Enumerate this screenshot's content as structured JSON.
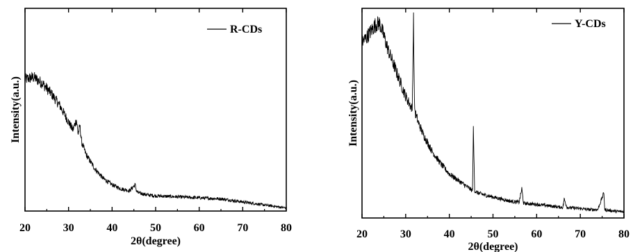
{
  "chart_data": [
    {
      "type": "line",
      "xlabel": "2θ(degree)",
      "ylabel": "Intensity(a.u.)",
      "xlim": [
        20,
        80
      ],
      "xticks": [
        "20",
        "30",
        "40",
        "50",
        "60",
        "70",
        "80"
      ],
      "yticks_labeled": false,
      "ylim": [
        0,
        100
      ],
      "legend": {
        "placement": "top-right",
        "entries": [
          "R-CDs"
        ]
      },
      "series": [
        {
          "name": "R-CDs",
          "color": "#000000",
          "x": [
            20,
            22,
            24,
            26,
            28,
            30,
            31,
            31.8,
            32.2,
            32.6,
            33,
            34,
            36,
            38,
            40,
            42,
            44,
            45.3,
            45.6,
            46,
            48,
            50,
            55,
            60,
            65,
            70,
            75,
            80
          ],
          "y": [
            65,
            66,
            63,
            58,
            52,
            44,
            40,
            45,
            38,
            42,
            34,
            28,
            21,
            16,
            13,
            11,
            10,
            13,
            10,
            9,
            8,
            7.5,
            7,
            6.5,
            6,
            4.5,
            3,
            1.5
          ]
        }
      ]
    },
    {
      "type": "line",
      "xlabel": "2θ(degree)",
      "ylabel": "Intensity(a.u.)",
      "xlim": [
        20,
        80
      ],
      "xticks": [
        "20",
        "30",
        "40",
        "50",
        "60",
        "70",
        "80"
      ],
      "yticks_labeled": false,
      "ylim": [
        0,
        100
      ],
      "legend": {
        "placement": "top-right",
        "entries": [
          "Y-CDs"
        ]
      },
      "series": [
        {
          "name": "Y-CDs",
          "color": "#000000",
          "x": [
            20,
            21,
            22,
            23,
            24,
            25,
            26,
            28,
            30,
            31.5,
            31.8,
            32,
            32.2,
            33,
            34,
            36,
            38,
            40,
            42,
            44,
            45.3,
            45.5,
            45.8,
            46.5,
            48,
            50,
            52,
            54,
            56,
            56.6,
            57,
            60,
            62,
            64,
            66,
            66.3,
            67,
            70,
            72,
            74,
            75.4,
            75.6,
            76,
            78,
            80
          ],
          "y": [
            84,
            86,
            89,
            92,
            93,
            87,
            80,
            69,
            58,
            52,
            95,
            55,
            50,
            45,
            40,
            32,
            26,
            21,
            18,
            15,
            13,
            42,
            13,
            12,
            11,
            10,
            9,
            8,
            7.5,
            14,
            7,
            6.5,
            6,
            5.5,
            5,
            9,
            5,
            4.5,
            4,
            4,
            12,
            4,
            3.8,
            3.2,
            3
          ]
        }
      ]
    }
  ]
}
